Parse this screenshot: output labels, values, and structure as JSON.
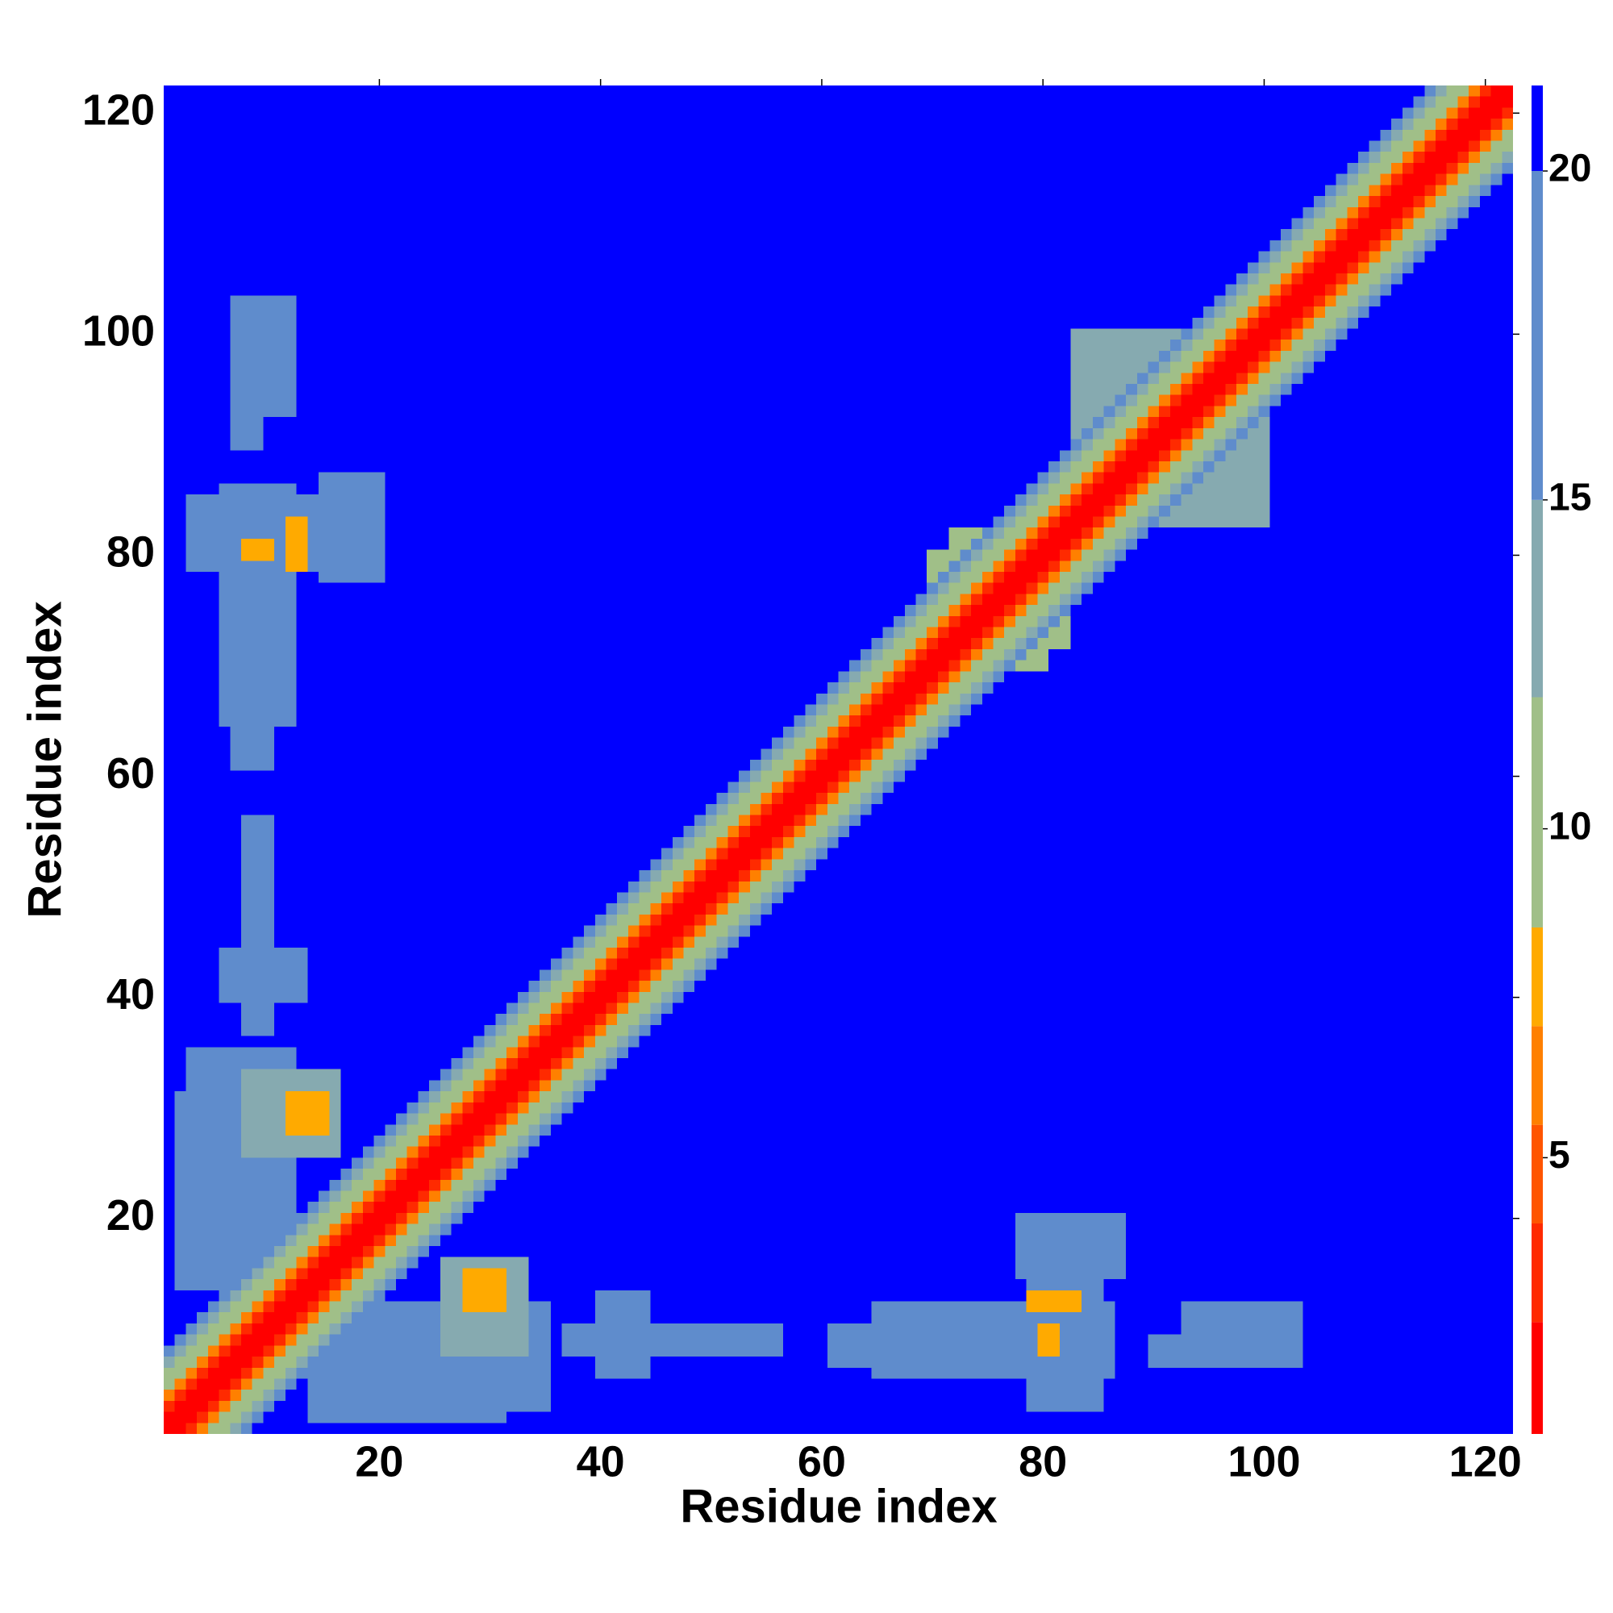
{
  "chart_data": {
    "type": "contact_map",
    "xlabel": "Residue index",
    "ylabel": "Residue index",
    "xlim": [
      0.5,
      122.5
    ],
    "ylim": [
      0.5,
      122.5
    ],
    "xticks": [
      20,
      40,
      60,
      80,
      100,
      120
    ],
    "yticks": [
      20,
      40,
      60,
      80,
      100,
      120
    ],
    "clim": [
      0.8,
      21.3
    ],
    "cticks": [
      5,
      10,
      15,
      20
    ],
    "levels": [
      0.8,
      2.5,
      4,
      5.5,
      7,
      8.5,
      12,
      15,
      20,
      21.3
    ],
    "level_colors": [
      "#ff0000",
      "#ff2a00",
      "#ff5500",
      "#ff8000",
      "#ffaa00",
      "#a0bf88",
      "#86aab0",
      "#5f8ccc",
      "#0000ff"
    ],
    "background_value": 21,
    "symmetric": true,
    "diagonal_profile": [
      1,
      1.5,
      3.2,
      6,
      9.5,
      11,
      13,
      16
    ],
    "patches": [
      {
        "x": [
          2,
          11
        ],
        "y": [
          14,
          30
        ],
        "value": 16
      },
      {
        "x": [
          3,
          12
        ],
        "y": [
          20,
          35
        ],
        "value": 15
      },
      {
        "x": [
          12,
          15
        ],
        "y": [
          26,
          31
        ],
        "value": 7
      },
      {
        "x": [
          17,
          31
        ],
        "y": [
          2,
          9
        ],
        "value": 17
      },
      {
        "x": [
          26,
          33
        ],
        "y": [
          8,
          16
        ],
        "value": 13
      },
      {
        "x": [
          28,
          31
        ],
        "y": [
          12,
          15
        ],
        "value": 7
      },
      {
        "x": [
          40,
          44
        ],
        "y": [
          6,
          13
        ],
        "value": 17
      },
      {
        "x": [
          37,
          56
        ],
        "y": [
          8,
          10
        ],
        "value": 17
      },
      {
        "x": [
          61,
          75
        ],
        "y": [
          7,
          10
        ],
        "value": 16
      },
      {
        "x": [
          79,
          85
        ],
        "y": [
          3,
          14
        ],
        "value": 16
      },
      {
        "x": [
          80,
          83
        ],
        "y": [
          11,
          12
        ],
        "value": 7
      },
      {
        "x": [
          81,
          86
        ],
        "y": [
          16,
          20
        ],
        "value": 17
      },
      {
        "x": [
          90,
          100
        ],
        "y": [
          7,
          9
        ],
        "value": 17
      },
      {
        "x": [
          6,
          12
        ],
        "y": [
          65,
          86
        ],
        "value": 17
      },
      {
        "x": [
          8,
          10
        ],
        "y": [
          80,
          81
        ],
        "value": 7
      },
      {
        "x": [
          12,
          13
        ],
        "y": [
          79,
          83
        ],
        "value": 7
      },
      {
        "x": [
          15,
          20
        ],
        "y": [
          78,
          87
        ],
        "value": 16
      },
      {
        "x": [
          7,
          12
        ],
        "y": [
          93,
          103
        ],
        "value": 17
      },
      {
        "x": [
          7,
          13
        ],
        "y": [
          40,
          44
        ],
        "value": 17
      },
      {
        "x": [
          83,
          94
        ],
        "y": [
          90,
          100
        ],
        "value": 12
      },
      {
        "x": [
          72,
          80
        ],
        "y": [
          70,
          82
        ],
        "value": 11
      }
    ]
  }
}
